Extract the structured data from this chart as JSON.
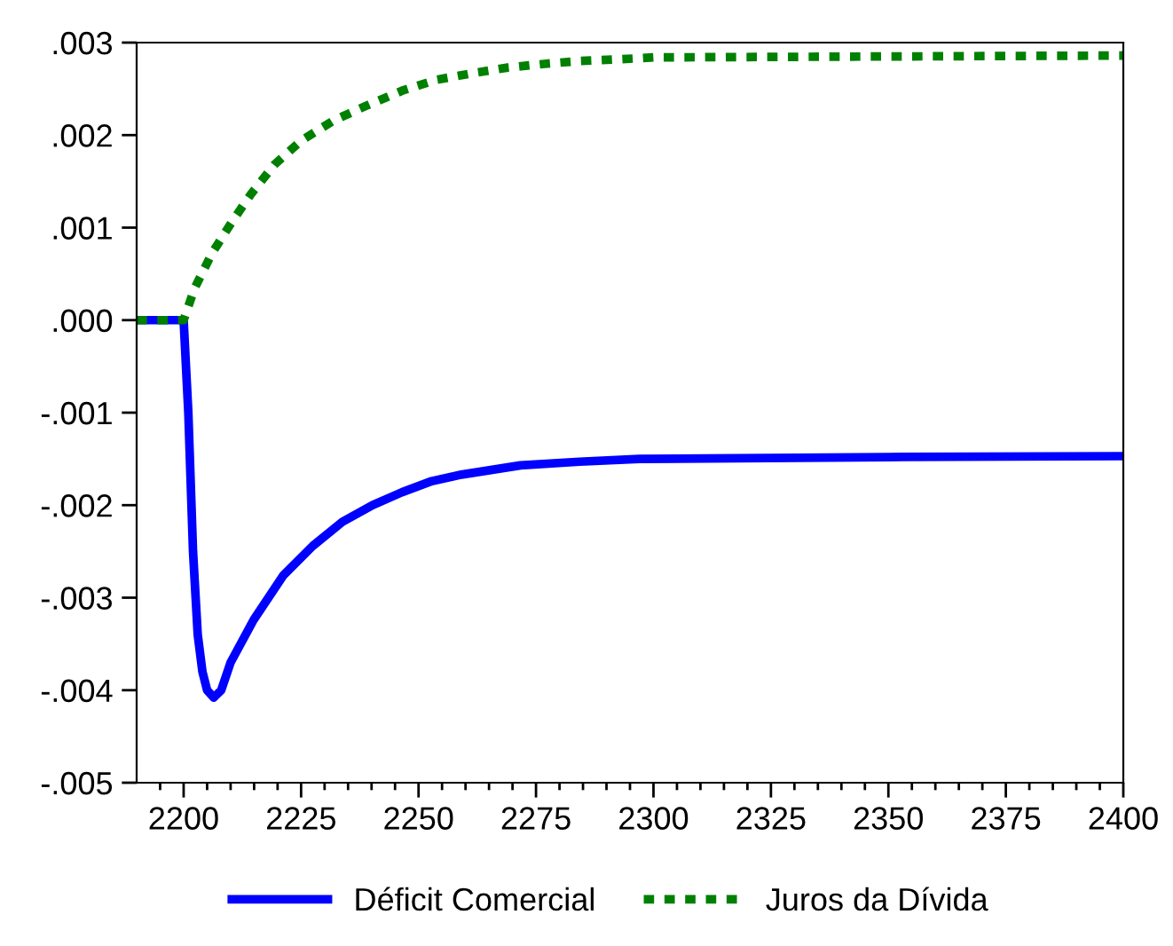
{
  "chart_data": {
    "type": "line",
    "xlim": [
      2190,
      2400
    ],
    "xticks": [
      2200,
      2225,
      2250,
      2275,
      2300,
      2325,
      2350,
      2375,
      2400,
      {
        "value": 2195,
        "label": null
      },
      {
        "value": 2205,
        "label": null
      },
      {
        "value": 2210,
        "label": null
      },
      {
        "value": 2215,
        "label": null
      },
      {
        "value": 2220,
        "label": null
      },
      {
        "value": 2230,
        "label": null
      },
      {
        "value": 2235,
        "label": null
      },
      {
        "value": 2240,
        "label": null
      },
      {
        "value": 2245,
        "label": null
      },
      {
        "value": 2255,
        "label": null
      },
      {
        "value": 2260,
        "label": null
      },
      {
        "value": 2265,
        "label": null
      },
      {
        "value": 2270,
        "label": null
      },
      {
        "value": 2280,
        "label": null
      },
      {
        "value": 2285,
        "label": null
      },
      {
        "value": 2290,
        "label": null
      },
      {
        "value": 2295,
        "label": null
      },
      {
        "value": 2305,
        "label": null
      },
      {
        "value": 2310,
        "label": null
      },
      {
        "value": 2315,
        "label": null
      },
      {
        "value": 2320,
        "label": null
      },
      {
        "value": 2330,
        "label": null
      },
      {
        "value": 2335,
        "label": null
      },
      {
        "value": 2340,
        "label": null
      },
      {
        "value": 2345,
        "label": null
      },
      {
        "value": 2355,
        "label": null
      },
      {
        "value": 2360,
        "label": null
      },
      {
        "value": 2365,
        "label": null
      },
      {
        "value": 2370,
        "label": null
      },
      {
        "value": 2380,
        "label": null
      },
      {
        "value": 2385,
        "label": null
      },
      {
        "value": 2390,
        "label": null
      },
      {
        "value": 2395,
        "label": null
      }
    ],
    "ylim": [
      -0.005,
      0.003
    ],
    "yticks": [
      {
        "value": 0.003,
        "label": ".003"
      },
      {
        "value": 0.002,
        "label": ".002"
      },
      {
        "value": 0.001,
        "label": ".001"
      },
      {
        "value": 0.0,
        "label": ".000"
      },
      {
        "value": -0.001,
        "label": "-.001"
      },
      {
        "value": -0.002,
        "label": "-.002"
      },
      {
        "value": -0.003,
        "label": "-.003"
      },
      {
        "value": -0.004,
        "label": "-.004"
      },
      {
        "value": -0.005,
        "label": "-.005"
      }
    ],
    "grid": false,
    "legend": "bottom",
    "marker": "none",
    "series": [
      {
        "name": "Déficit Comercial",
        "color": "#0000ff",
        "line_style": "solid",
        "x": [
          2190,
          2200,
          2201,
          2202,
          2203,
          2204,
          2205,
          2206.4,
          2208,
          2210,
          2214.9,
          2221.2,
          2227.5,
          2233.8,
          2240.2,
          2246.5,
          2252.8,
          2259.1,
          2271.7,
          2284.3,
          2297,
          2350,
          2400
        ],
        "values": [
          0,
          0,
          -0.001,
          -0.0025,
          -0.0034,
          -0.0038,
          -0.004,
          -0.00408,
          -0.004,
          -0.0037,
          -0.00324,
          -0.00276,
          -0.00244,
          -0.00218,
          -0.002,
          -0.00186,
          -0.00174,
          -0.00167,
          -0.00157,
          -0.00153,
          -0.0015,
          -0.00148,
          -0.00147
        ]
      },
      {
        "name": "Juros da Dívida",
        "color": "#008000",
        "line_style": "dashed",
        "x": [
          2190,
          2200,
          2202.3,
          2206,
          2210,
          2214.3,
          2219.3,
          2225,
          2232,
          2239,
          2246.5,
          2254,
          2261.6,
          2269,
          2276.8,
          2284,
          2293,
          2300,
          2350,
          2400
        ],
        "values": [
          0,
          0,
          0.00034,
          0.00072,
          0.00104,
          0.00136,
          0.00168,
          0.00194,
          0.00216,
          0.00232,
          0.00248,
          0.0026,
          0.00267,
          0.00273,
          0.00277,
          0.0028,
          0.00282,
          0.00284,
          0.00285,
          0.00286
        ]
      }
    ]
  }
}
